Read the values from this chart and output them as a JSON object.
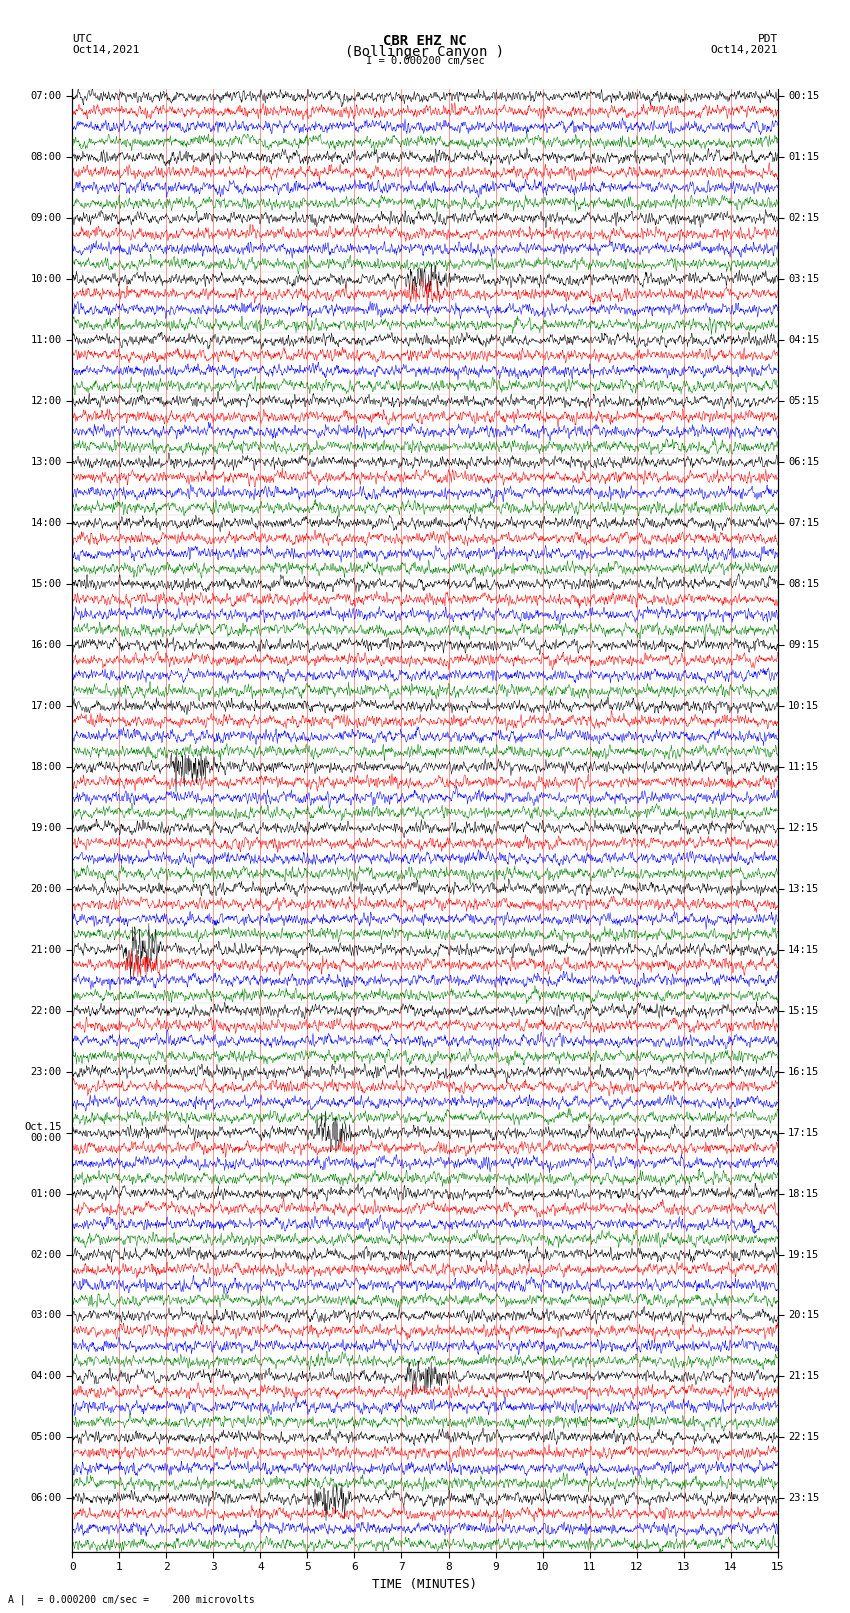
{
  "title_line1": "CBR EHZ NC",
  "title_line2": "(Bollinger Canyon )",
  "title_line3": "I = 0.000200 cm/sec",
  "left_label_line1": "UTC",
  "left_label_line2": "Oct14,2021",
  "right_label_line1": "PDT",
  "right_label_line2": "Oct14,2021",
  "bottom_label": "A |  = 0.000200 cm/sec =    200 microvolts",
  "xlabel": "TIME (MINUTES)",
  "colors_cycle": [
    "black",
    "red",
    "blue",
    "green"
  ],
  "left_hour_labels": [
    "07:00",
    "08:00",
    "09:00",
    "10:00",
    "11:00",
    "12:00",
    "13:00",
    "14:00",
    "15:00",
    "16:00",
    "17:00",
    "18:00",
    "19:00",
    "20:00",
    "21:00",
    "22:00",
    "23:00",
    "Oct.15\n00:00",
    "01:00",
    "02:00",
    "03:00",
    "04:00",
    "05:00",
    "06:00"
  ],
  "right_hour_labels": [
    "00:15",
    "01:15",
    "02:15",
    "03:15",
    "04:15",
    "05:15",
    "06:15",
    "07:15",
    "08:15",
    "09:15",
    "10:15",
    "11:15",
    "12:15",
    "13:15",
    "14:15",
    "15:15",
    "16:15",
    "17:15",
    "18:15",
    "19:15",
    "20:15",
    "21:15",
    "22:15",
    "23:15"
  ],
  "num_hours": 24,
  "traces_per_hour": 4,
  "minutes_per_trace": 15,
  "fig_width": 8.5,
  "fig_height": 16.13,
  "noise_amplitude": 0.28,
  "event_traces": {
    "12": {
      "minute": 7.5,
      "amp": 2.5
    },
    "13": {
      "minute": 7.5,
      "amp": 2.0
    },
    "44": {
      "minute": 2.5,
      "amp": 3.0
    },
    "56": {
      "minute": 1.5,
      "amp": 3.5
    },
    "57": {
      "minute": 1.5,
      "amp": 2.5
    },
    "68": {
      "minute": 5.5,
      "amp": 2.5
    },
    "84": {
      "minute": 7.5,
      "amp": 2.5
    },
    "92": {
      "minute": 5.5,
      "amp": 2.5
    }
  }
}
